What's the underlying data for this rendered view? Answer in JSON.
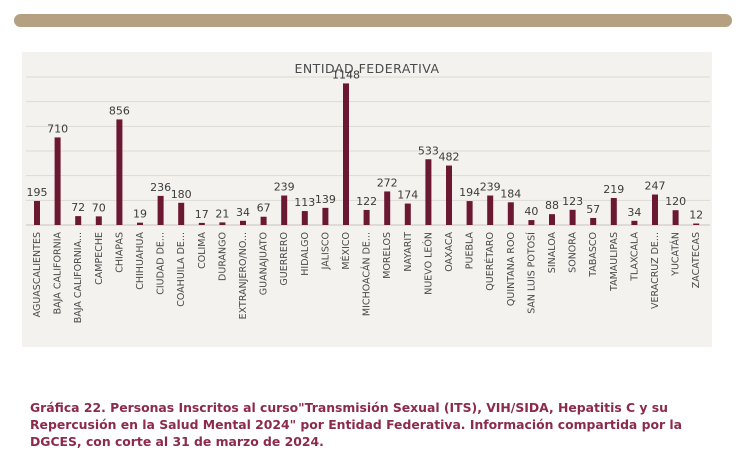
{
  "chart_data": {
    "type": "bar",
    "title": "ENTIDAD FEDERATIVA",
    "categories": [
      "AGUASCALIENTES",
      "BAJA CALIFORNIA",
      "BAJA CALIFORNIA...",
      "CAMPECHE",
      "CHIAPAS",
      "CHIHUAHUA",
      "CIUDAD DE...",
      "COAHUILA DE...",
      "COLIMA",
      "DURANGO",
      "EXTRANJERO/NO...",
      "GUANAJUATO",
      "GUERRERO",
      "HIDALGO",
      "JALISCO",
      "MÉXICO",
      "MICHOACÁN DE...",
      "MORELOS",
      "NAYARIT",
      "NUEVO LEÓN",
      "OAXACA",
      "PUEBLA",
      "QUERÉTARO",
      "QUINTANA ROO",
      "SAN LUIS POTOSÍ",
      "SINALOA",
      "SONORA",
      "TABASCO",
      "TAMAULIPAS",
      "TLAXCALA",
      "VERACRUZ DE...",
      "YUCATÁN",
      "ZACATECAS"
    ],
    "values": [
      195,
      710,
      72,
      70,
      856,
      19,
      236,
      180,
      17,
      21,
      34,
      67,
      239,
      113,
      139,
      1148,
      122,
      272,
      174,
      533,
      482,
      194,
      239,
      184,
      40,
      88,
      123,
      57,
      219,
      34,
      247,
      120,
      12
    ],
    "ylim": [
      0,
      1200
    ],
    "grid": true,
    "bar_color": "#6b1832"
  },
  "caption": "Gráfica 22. Personas Inscritos al curso\"Transmisión Sexual (ITS), VIH/SIDA, Hepatitis C y su\nRepercusión en la Salud Mental 2024\" por Entidad Federativa. Información compartida por la\nDGCES, con corte al 31 de marzo de 2024.",
  "colors": {
    "bar": "#6b1832",
    "caption": "#8c2a4a",
    "top_bar": "#b5a082"
  }
}
